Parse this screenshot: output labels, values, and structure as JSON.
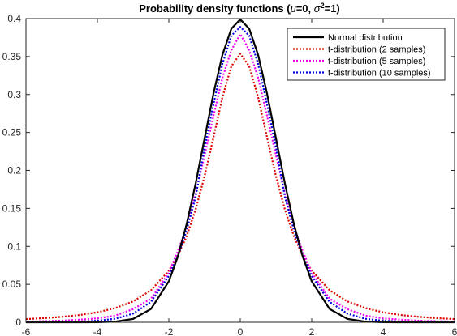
{
  "chart_data": {
    "type": "line",
    "title": {
      "prefix": "Probability density functions (",
      "mu_symbol": "μ",
      "mu_value": "=0, ",
      "sigma_symbol": "σ",
      "sigma_exponent": "2",
      "sigma_value": "=1)"
    },
    "xlabel": "",
    "ylabel": "",
    "xlim": [
      -6,
      6
    ],
    "ylim": [
      0,
      0.4
    ],
    "x_ticks": [
      "-6",
      "-4",
      "-2",
      "0",
      "2",
      "4",
      "6"
    ],
    "y_ticks": [
      "0",
      "0.05",
      "0.1",
      "0.15",
      "0.2",
      "0.25",
      "0.3",
      "0.35",
      "0.4"
    ],
    "grid": false,
    "legend_position": "top-right",
    "x": [
      -6,
      -5.5,
      -5,
      -4.5,
      -4,
      -3.5,
      -3,
      -2.5,
      -2,
      -1.75,
      -1.5,
      -1.25,
      -1,
      -0.75,
      -0.5,
      -0.25,
      0,
      0.25,
      0.5,
      0.75,
      1,
      1.25,
      1.5,
      1.75,
      2,
      2.5,
      3,
      3.5,
      4,
      4.5,
      5,
      5.5,
      6
    ],
    "series": [
      {
        "name": "Normal distribution",
        "color": "#000000",
        "style": "solid",
        "values": [
          0.0,
          0.0,
          0.0,
          0.0,
          0.0001,
          0.0009,
          0.0044,
          0.0175,
          0.054,
          0.0863,
          0.1295,
          0.1826,
          0.242,
          0.3011,
          0.3521,
          0.3867,
          0.3989,
          0.3867,
          0.3521,
          0.3011,
          0.242,
          0.1826,
          0.1295,
          0.0863,
          0.054,
          0.0175,
          0.0044,
          0.0009,
          0.0001,
          0.0,
          0.0,
          0.0,
          0.0
        ]
      },
      {
        "name": "t-distribution (2 samples)",
        "color": "#dd0000",
        "style": "dotted",
        "values": [
          0.0042,
          0.0054,
          0.0071,
          0.0095,
          0.0131,
          0.0187,
          0.0274,
          0.0422,
          0.068,
          0.0873,
          0.1134,
          0.1485,
          0.1925,
          0.2434,
          0.2962,
          0.3372,
          0.3536,
          0.3372,
          0.2962,
          0.2434,
          0.1925,
          0.1485,
          0.1134,
          0.0873,
          0.068,
          0.0422,
          0.0274,
          0.0187,
          0.0131,
          0.0095,
          0.0071,
          0.0054,
          0.0042
        ]
      },
      {
        "name": "t-distribution (5 samples)",
        "color": "#ee00ee",
        "style": "dotted",
        "values": [
          0.0009,
          0.0014,
          0.0021,
          0.0034,
          0.0051,
          0.0087,
          0.0173,
          0.031,
          0.0651,
          0.0935,
          0.1252,
          0.1691,
          0.2197,
          0.2719,
          0.322,
          0.3583,
          0.3796,
          0.3583,
          0.322,
          0.2719,
          0.2197,
          0.1691,
          0.1252,
          0.0935,
          0.0651,
          0.031,
          0.0173,
          0.0087,
          0.0051,
          0.0034,
          0.0021,
          0.0014,
          0.0009
        ]
      },
      {
        "name": "t-distribution (10 samples)",
        "color": "#0000dd",
        "style": "dotted",
        "values": [
          0.0001,
          0.0002,
          0.0004,
          0.0008,
          0.002,
          0.0046,
          0.0114,
          0.0269,
          0.0611,
          0.0871,
          0.1215,
          0.1652,
          0.2304,
          0.2872,
          0.3402,
          0.3775,
          0.3891,
          0.3775,
          0.3402,
          0.2872,
          0.2304,
          0.1652,
          0.1215,
          0.0871,
          0.0611,
          0.0269,
          0.0114,
          0.0046,
          0.002,
          0.0008,
          0.0004,
          0.0002,
          0.0001
        ]
      }
    ]
  }
}
